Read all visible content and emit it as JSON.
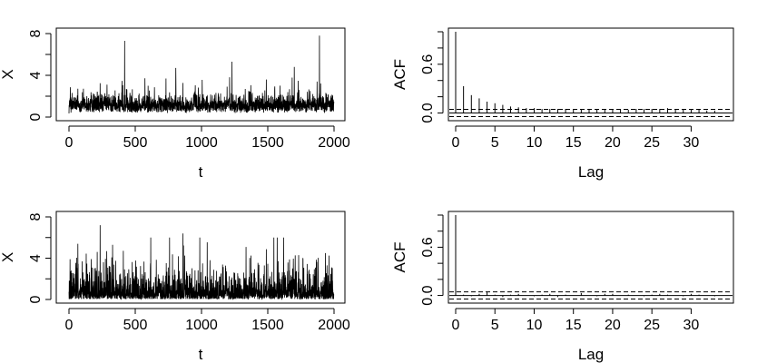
{
  "chart_data": [
    {
      "type": "line",
      "title": "",
      "xlabel": "t",
      "ylabel": "X",
      "xlim": [
        0,
        2000
      ],
      "ylim": [
        0,
        8
      ],
      "xticks": [
        0,
        500,
        1000,
        1500,
        2000
      ],
      "yticks": [
        0,
        4,
        8
      ],
      "n": 2000,
      "series_summary": "positive volatile series, typical level about 1, frequent spikes to 3-5",
      "notable_peaks": [
        {
          "x": 420,
          "y": 7.3
        },
        {
          "x": 1230,
          "y": 5.3
        },
        {
          "x": 1700,
          "y": 4.8
        },
        {
          "x": 1890,
          "y": 7.8
        }
      ]
    },
    {
      "type": "bar",
      "title": "",
      "xlabel": "Lag",
      "ylabel": "ACF",
      "xlim": [
        0,
        34
      ],
      "ylim": [
        -0.05,
        1.0
      ],
      "xticks": [
        0,
        5,
        10,
        15,
        20,
        25,
        30
      ],
      "yticks": [
        0.0,
        0.6
      ],
      "lags": [
        0,
        1,
        2,
        3,
        4,
        5,
        6,
        7,
        8,
        9,
        10,
        11,
        12,
        13,
        14,
        15,
        16,
        17,
        18,
        19,
        20,
        21,
        22,
        23,
        24,
        25,
        26,
        27,
        28,
        29,
        30,
        31,
        32,
        33
      ],
      "values": [
        1.0,
        0.33,
        0.22,
        0.18,
        0.14,
        0.12,
        0.1,
        0.08,
        0.07,
        0.06,
        0.06,
        0.05,
        0.05,
        0.05,
        0.05,
        0.04,
        0.04,
        0.04,
        0.04,
        0.04,
        0.04,
        0.04,
        0.04,
        0.05,
        0.05,
        0.05,
        0.05,
        0.06,
        0.05,
        0.05,
        0.04,
        0.04,
        0.03,
        0.03
      ],
      "confidence_band": 0.045
    },
    {
      "type": "line",
      "title": "",
      "xlabel": "t",
      "ylabel": "X",
      "xlim": [
        0,
        2000
      ],
      "ylim": [
        0,
        8
      ],
      "xticks": [
        0,
        500,
        1000,
        1500,
        2000
      ],
      "yticks": [
        0,
        4,
        8
      ],
      "n": 2000,
      "series_summary": "positive series with no persistence, typical level about 1, spikes to 3-5",
      "notable_peaks": [
        {
          "x": 235,
          "y": 7.2
        },
        {
          "x": 860,
          "y": 6.4
        },
        {
          "x": 1620,
          "y": 6.0
        }
      ]
    },
    {
      "type": "bar",
      "title": "",
      "xlabel": "Lag",
      "ylabel": "ACF",
      "xlim": [
        0,
        34
      ],
      "ylim": [
        -0.05,
        1.0
      ],
      "xticks": [
        0,
        5,
        10,
        15,
        20,
        25,
        30
      ],
      "yticks": [
        0.0,
        0.6
      ],
      "lags": [
        0,
        1,
        2,
        3,
        4,
        5,
        6,
        7,
        8,
        9,
        10,
        11,
        12,
        13,
        14,
        15,
        16,
        17,
        18,
        19,
        20,
        21,
        22,
        23,
        24,
        25,
        26,
        27,
        28,
        29,
        30,
        31,
        32,
        33
      ],
      "values": [
        1.0,
        0.01,
        -0.01,
        0.02,
        0.04,
        0.01,
        -0.02,
        0.01,
        0.02,
        0.0,
        -0.01,
        0.01,
        0.02,
        -0.02,
        0.01,
        0.0,
        0.03,
        0.0,
        -0.01,
        0.02,
        0.02,
        0.0,
        0.01,
        0.0,
        -0.01,
        0.01,
        0.02,
        0.01,
        0.0,
        -0.01,
        0.02,
        0.01,
        0.0,
        -0.01
      ],
      "confidence_band": 0.045
    }
  ]
}
